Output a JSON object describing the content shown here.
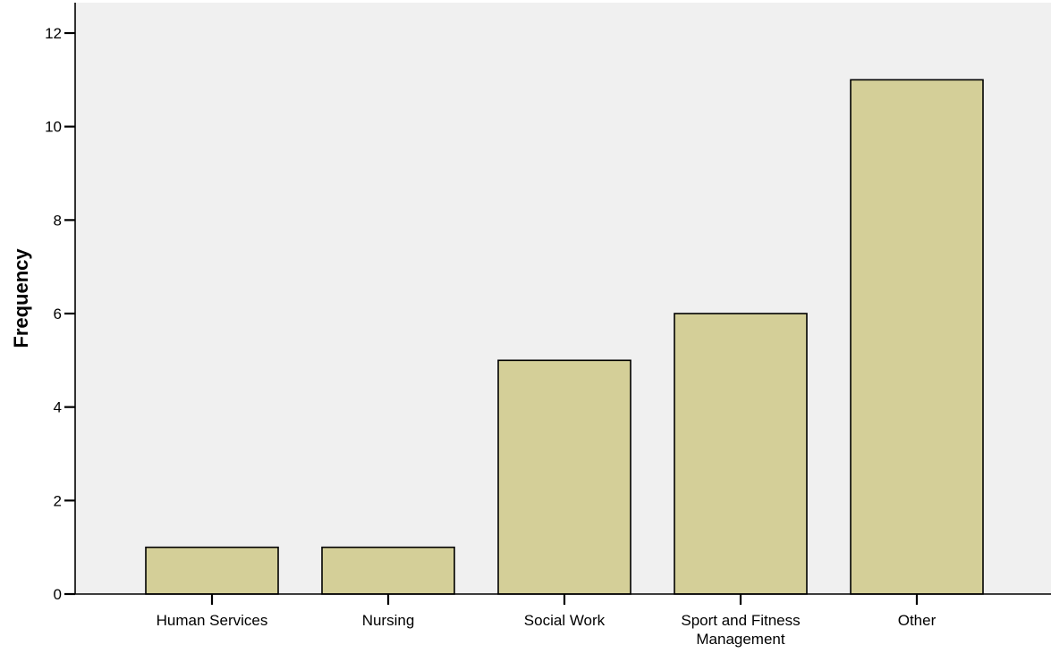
{
  "chart_data": {
    "type": "bar",
    "title": "",
    "xlabel": "",
    "ylabel": "Frequency",
    "categories": [
      [
        "Human Services"
      ],
      [
        "Nursing"
      ],
      [
        "Social Work"
      ],
      [
        "Sport and Fitness",
        "Management"
      ],
      [
        "Other"
      ]
    ],
    "values": [
      1,
      1,
      5,
      6,
      11
    ],
    "ylim": [
      0,
      12
    ],
    "yticks": [
      0,
      2,
      4,
      6,
      8,
      10,
      12
    ],
    "grid": false,
    "legend": "none",
    "colors": {
      "plot_background": "#f0f0f0",
      "bar_fill": "#d4cf98",
      "bar_stroke": "#000000"
    }
  }
}
